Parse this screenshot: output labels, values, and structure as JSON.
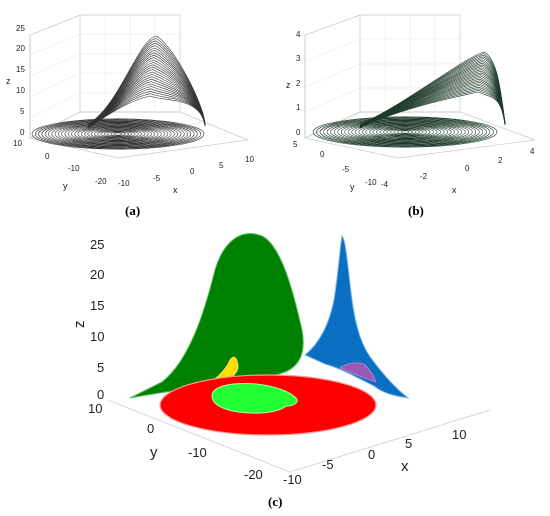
{
  "chart_data": [
    {
      "type": "line3d",
      "caption": "(a)",
      "xlabel": "x",
      "ylabel": "y",
      "zlabel": "z",
      "xticks": [
        "-10",
        "-5",
        "0",
        "5",
        "10"
      ],
      "yticks": [
        "10",
        "0",
        "-10",
        "-20"
      ],
      "zticks": [
        "0",
        "5",
        "10",
        "15",
        "20",
        "25"
      ],
      "xlim": [
        -10,
        10
      ],
      "ylim": [
        -20,
        10
      ],
      "zlim": [
        0,
        25
      ],
      "line_color": "#333333",
      "grid": true
    },
    {
      "type": "line3d",
      "caption": "(b)",
      "xlabel": "x",
      "ylabel": "y",
      "zlabel": "z",
      "xticks": [
        "-4",
        "-2",
        "0",
        "2",
        "4"
      ],
      "yticks": [
        "5",
        "0",
        "-5",
        "-10"
      ],
      "zticks": [
        "0",
        "1",
        "2",
        "3",
        "4"
      ],
      "xlim": [
        -4,
        4
      ],
      "ylim": [
        -10,
        5
      ],
      "zlim": [
        0,
        4
      ],
      "line_color": "#1e3a2a",
      "grid": true
    },
    {
      "type": "surface3d",
      "caption": "(c)",
      "xlabel": "x",
      "ylabel": "y",
      "zlabel": "z",
      "xticks": [
        "-10",
        "-5",
        "0",
        "5",
        "10"
      ],
      "yticks": [
        "10",
        "0",
        "-10",
        "-20"
      ],
      "zticks": [
        "0",
        "5",
        "10",
        "15",
        "20",
        "25"
      ],
      "xlim": [
        -10,
        10
      ],
      "ylim": [
        -20,
        10
      ],
      "zlim": [
        0,
        25
      ],
      "region_colors": {
        "red": "#ff0000",
        "green": "#008000",
        "light_green": "#00ff33",
        "blue": "#0070c0",
        "yellow": "#ffdd00",
        "purple": "#9b59b6"
      },
      "grid": false
    }
  ]
}
